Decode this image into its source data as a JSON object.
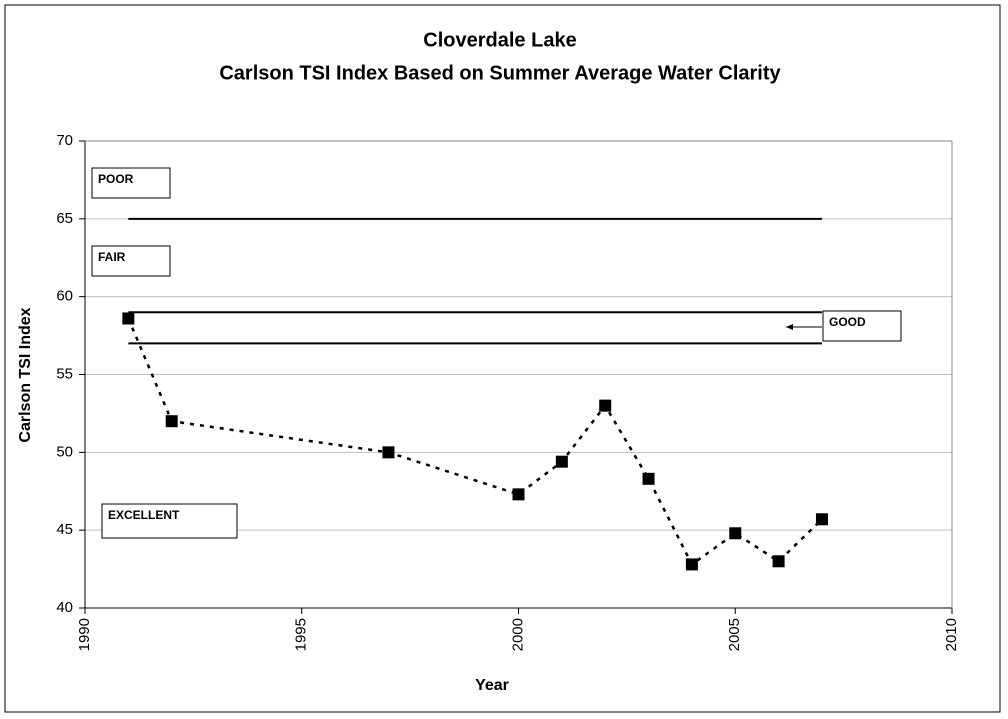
{
  "chart_data": {
    "type": "line",
    "title": "Cloverdale Lake",
    "subtitle": "Carlson TSI Index Based on Summer Average Water Clarity",
    "x_label": "Year",
    "y_label": "Carlson TSI Index",
    "x": [
      1991,
      1992,
      1997,
      2000,
      2001,
      2002,
      2003,
      2004,
      2005,
      2006,
      2007
    ],
    "series": [
      {
        "name": "Carlson TSI Index",
        "color": "#000000",
        "values": [
          58.6,
          52.0,
          50.0,
          47.3,
          49.4,
          53.0,
          48.3,
          42.8,
          44.8,
          43.0,
          45.7
        ]
      }
    ],
    "xlim": [
      1990,
      2010
    ],
    "xticks": [
      1990,
      1995,
      2000,
      2005,
      2010
    ],
    "ylim": [
      40,
      70
    ],
    "yticks": [
      40,
      45,
      50,
      55,
      60,
      65,
      70
    ],
    "grid": true,
    "reference_lines": [
      {
        "value": 65,
        "x": [
          1991,
          2007
        ]
      },
      {
        "value": 59,
        "x": [
          1991,
          2007
        ]
      },
      {
        "value": 57,
        "x": [
          1991,
          2007
        ]
      }
    ],
    "annotations": [
      "POOR",
      "FAIR",
      "GOOD",
      "EXCELLENT"
    ]
  }
}
